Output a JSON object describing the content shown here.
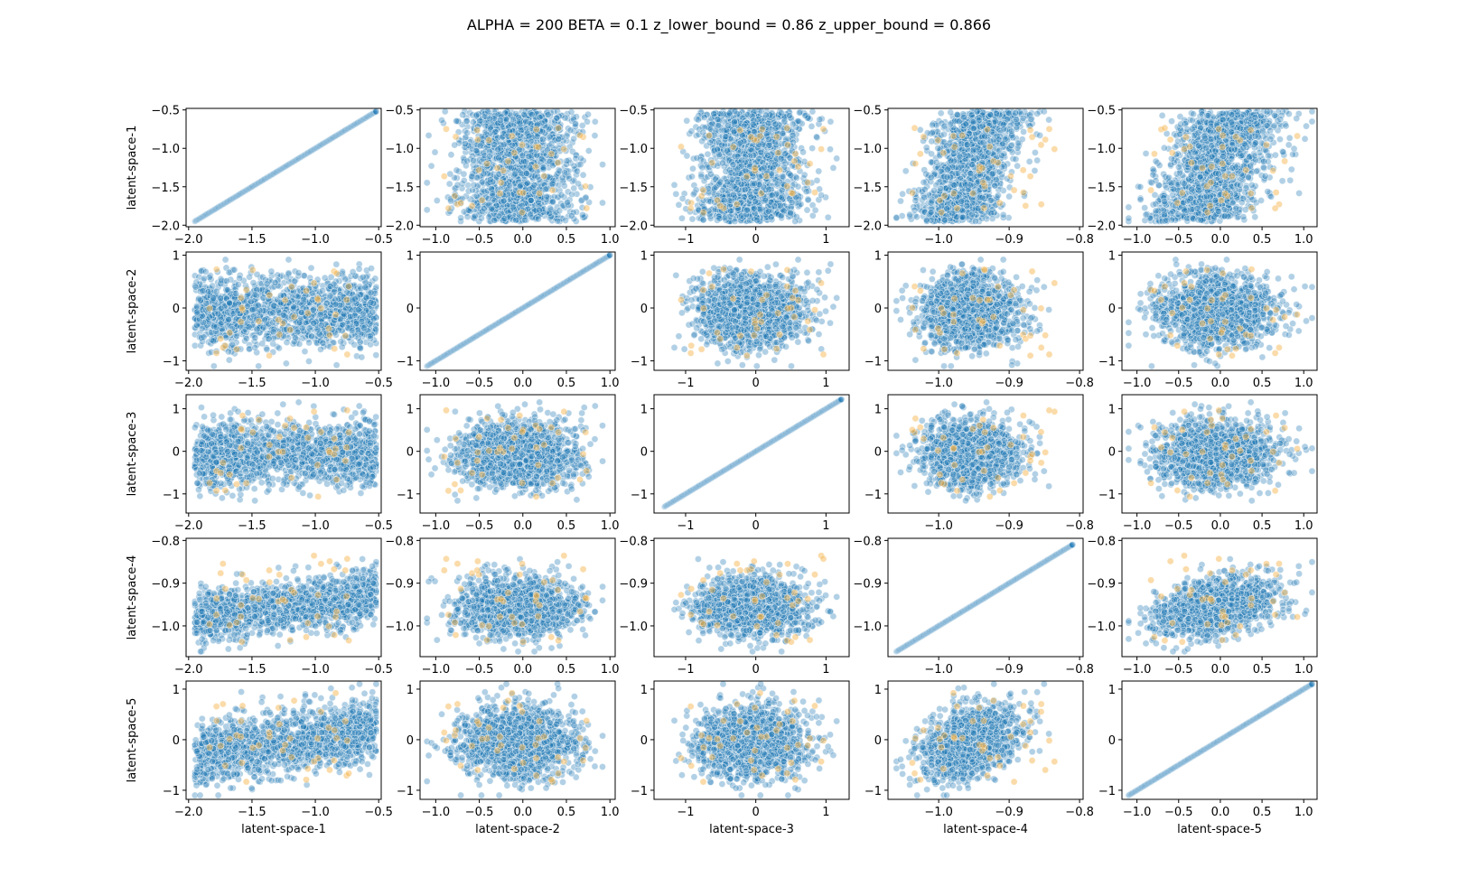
{
  "figure": {
    "title": "ALPHA = 200  BETA = 0.1  z_lower_bound = 0.86  z_upper_bound = 0.866"
  },
  "chart_data": {
    "type": "scatter",
    "layout": "pair-plot 5x5",
    "variables": [
      "latent-space-1",
      "latent-space-2",
      "latent-space-3",
      "latent-space-4",
      "latent-space-5"
    ],
    "grid": false,
    "legend": "none",
    "colors": {
      "main": "#1f77b4",
      "highlight": "#f5b041",
      "frame": "#000000"
    },
    "marker_alpha": 0.35,
    "axes": [
      {
        "name": "latent-space-1",
        "lim": [
          -2.02,
          -0.48
        ],
        "ticks": [
          -2.0,
          -1.5,
          -1.0,
          -0.5
        ],
        "tick_labels": [
          "−2.0",
          "−1.5",
          "−1.0",
          "−0.5"
        ],
        "range": [
          -1.95,
          -0.52
        ],
        "center": -1.25,
        "sd": 0.4,
        "dist": "uniform"
      },
      {
        "name": "latent-space-2",
        "lim": [
          -1.18,
          1.06
        ],
        "ticks": [
          -1.0,
          -0.5,
          0.0,
          0.5,
          1.0
        ],
        "tick_labels": [
          "−1.0",
          "−0.5",
          "0.0",
          "0.5",
          "1.0"
        ],
        "tick_labels_y": [
          "−1",
          "0",
          "1"
        ],
        "ticks_y": [
          -1,
          0,
          1
        ],
        "range": [
          -1.1,
          1.0
        ],
        "center": -0.05,
        "sd": 0.33,
        "dist": "normal"
      },
      {
        "name": "latent-space-3",
        "lim": [
          -1.45,
          1.33
        ],
        "ticks": [
          -1,
          0,
          1
        ],
        "tick_labels": [
          "−1",
          "0",
          "1"
        ],
        "range": [
          -1.3,
          1.22
        ],
        "center": -0.05,
        "sd": 0.38,
        "dist": "normal"
      },
      {
        "name": "latent-space-4",
        "lim": [
          -1.072,
          -0.795
        ],
        "ticks": [
          -1.0,
          -0.9,
          -0.8
        ],
        "tick_labels": [
          "−1.0",
          "−0.9",
          "−0.8"
        ],
        "tick_labels_y": [
          "−1.0",
          "−0.9",
          "−0.8"
        ],
        "range": [
          -1.06,
          -0.81
        ],
        "center": -0.955,
        "sd": 0.033,
        "dist": "normal"
      },
      {
        "name": "latent-space-5",
        "lim": [
          -1.18,
          1.16
        ],
        "ticks": [
          -1.0,
          -0.5,
          0.0,
          0.5,
          1.0
        ],
        "tick_labels": [
          "−1.0",
          "−0.5",
          "0.0",
          "0.5",
          "1.0"
        ],
        "tick_labels_y": [
          "−1",
          "0",
          "1"
        ],
        "ticks_y": [
          -1,
          0,
          1
        ],
        "range": [
          -1.1,
          1.1
        ],
        "center": -0.05,
        "sd": 0.35,
        "dist": "normal"
      }
    ],
    "correlations": [
      [
        1.0,
        0.0,
        0.0,
        0.45,
        0.45
      ],
      [
        0.0,
        1.0,
        0.0,
        0.0,
        0.0
      ],
      [
        0.0,
        0.0,
        1.0,
        0.0,
        0.0
      ],
      [
        0.45,
        0.0,
        0.0,
        1.0,
        0.35
      ],
      [
        0.45,
        0.0,
        0.0,
        0.35,
        1.0
      ]
    ],
    "points_per_panel": 1600,
    "highlight_points_per_panel": 40
  }
}
